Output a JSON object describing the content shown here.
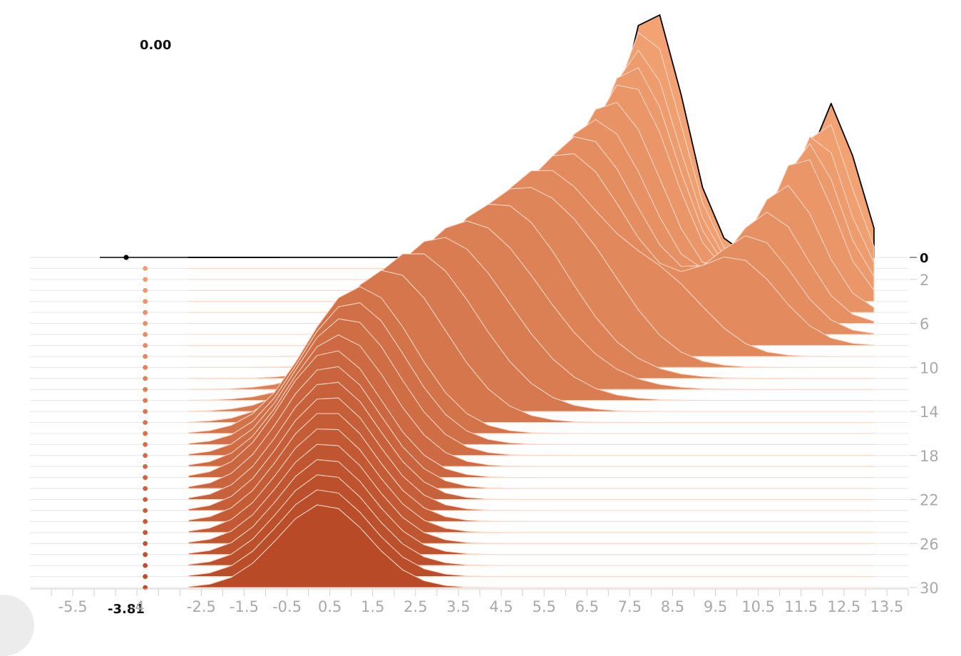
{
  "hover": {
    "value_label": "0.00",
    "x_label": "-3.81",
    "x_value": -3.81,
    "step_label": "0",
    "step": 0
  },
  "chart_data": {
    "type": "area",
    "title": "",
    "xlabel": "",
    "ylabel": "",
    "xlim": [
      -6.5,
      14.0
    ],
    "x_tick_labels": [
      "-5.5",
      "-4",
      "-2.5",
      "-1.5",
      "-0.5",
      "0.5",
      "1.5",
      "2.5",
      "3.5",
      "4.5",
      "5.5",
      "6.5",
      "7.5",
      "8.5",
      "9.5",
      "10.5",
      "11.5",
      "12.5",
      "13.5"
    ],
    "y_tick_labels": [
      "2",
      "6",
      "10",
      "14",
      "18",
      "22",
      "26",
      "30"
    ],
    "steps": [
      0,
      30
    ],
    "step_interval": 1,
    "colors": {
      "front": "#b84a27",
      "back": "#f2a273",
      "ridge_line": "#ffd7c4",
      "highlight": "#000000",
      "axis": "#bdbdbd"
    },
    "series": [
      {
        "step": 0,
        "mean": 8.0,
        "std": 0.75,
        "weight": 0.62,
        "mean2": 12.2,
        "std2": 0.55,
        "weight2": 0.38
      },
      {
        "step": 4,
        "mean": 7.4,
        "std": 1.1,
        "weight": 0.6,
        "mean2": 11.5,
        "std2": 0.75,
        "weight2": 0.4
      },
      {
        "step": 8,
        "mean": 6.0,
        "std": 1.5,
        "weight": 0.7,
        "mean2": 10.0,
        "std2": 1.0,
        "weight2": 0.3
      },
      {
        "step": 12,
        "mean": 3.7,
        "std": 1.7,
        "weight": 1.0
      },
      {
        "step": 16,
        "mean": 1.2,
        "std": 1.25,
        "weight": 1.0
      },
      {
        "step": 20,
        "mean": 0.55,
        "std": 1.15,
        "weight": 1.0
      },
      {
        "step": 24,
        "mean": 0.45,
        "std": 1.1,
        "weight": 1.0
      },
      {
        "step": 30,
        "mean": 0.35,
        "std": 1.05,
        "weight": 1.0
      }
    ]
  }
}
